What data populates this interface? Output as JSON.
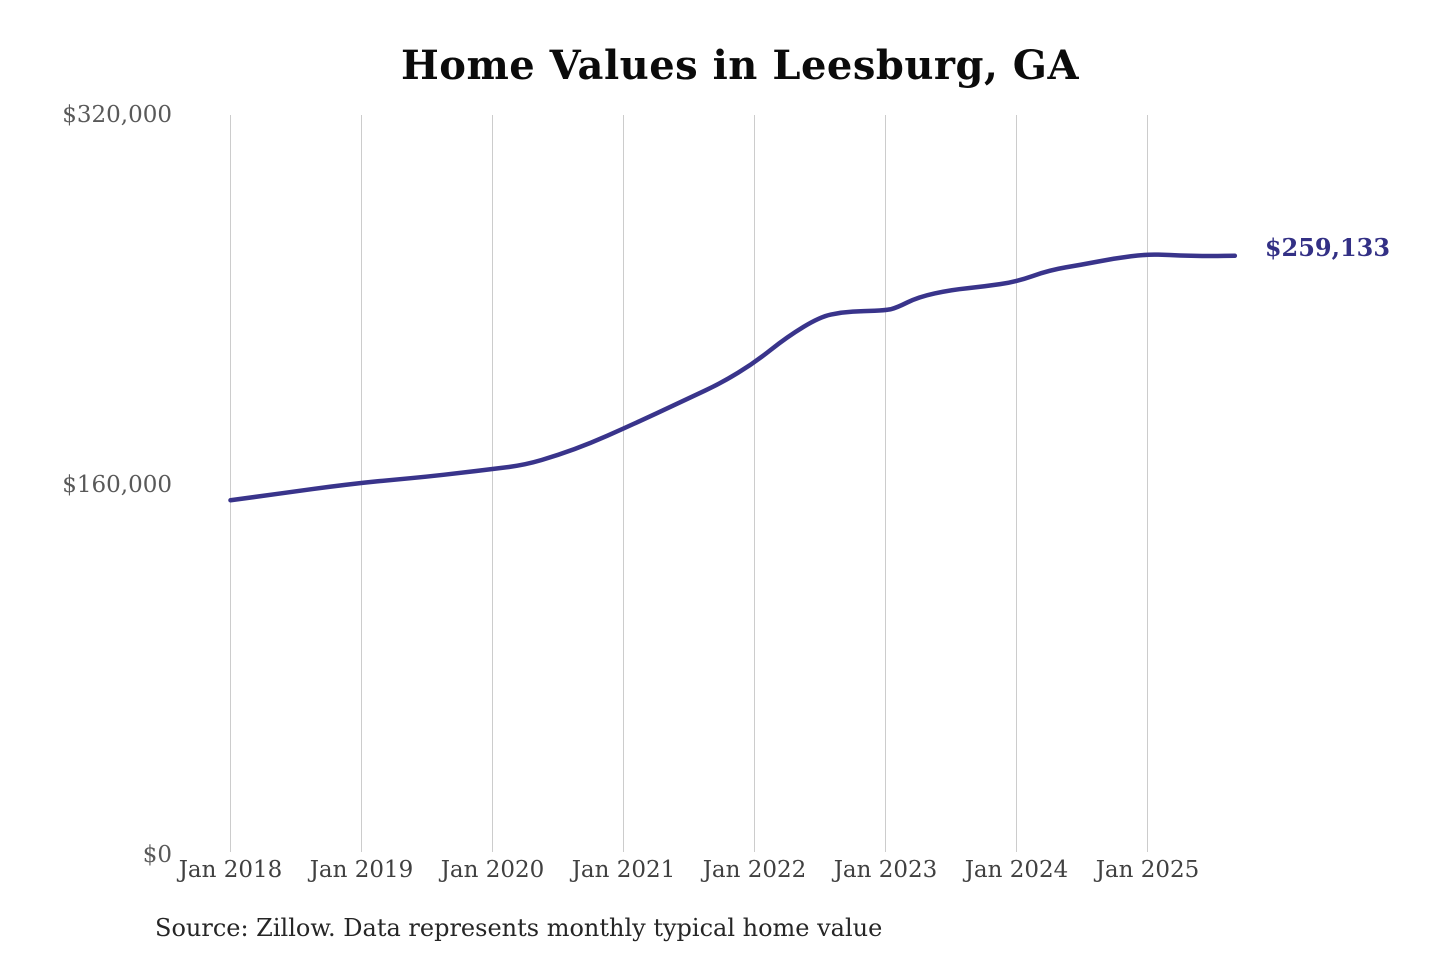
{
  "page": {
    "background": "#ffffff"
  },
  "chart": {
    "title": "Home Values in Leesburg, GA",
    "source": "Source: Zillow. Data represents monthly typical home value",
    "end_label": "$259,133",
    "line_color": "#39348b",
    "end_label_color": "#333085",
    "grid_color": "#cccccc"
  },
  "chart_data": {
    "type": "line",
    "title": "Home Values in Leesburg, GA",
    "xlabel": "",
    "ylabel": "",
    "ylim": [
      0,
      320000
    ],
    "grid": "vertical-only",
    "legend": "none",
    "y_ticks": [
      {
        "label": "$320,000",
        "value": 320000
      },
      {
        "label": "$160,000",
        "value": 160000
      },
      {
        "label": "$0",
        "value": 0
      }
    ],
    "x_ticks": [
      {
        "label": "Jan 2018",
        "m": 0
      },
      {
        "label": "Jan 2019",
        "m": 12
      },
      {
        "label": "Jan 2020",
        "m": 24
      },
      {
        "label": "Jan 2021",
        "m": 36
      },
      {
        "label": "Jan 2022",
        "m": 48
      },
      {
        "label": "Jan 2023",
        "m": 60
      },
      {
        "label": "Jan 2024",
        "m": 72
      },
      {
        "label": "Jan 2025",
        "m": 84
      }
    ],
    "series": [
      {
        "name": "Monthly typical home value",
        "points": [
          {
            "date": "Jan 2018",
            "m": 0,
            "value": 153400
          },
          {
            "date": "Apr 2018",
            "m": 3,
            "value": 155300
          },
          {
            "date": "Jul 2018",
            "m": 6,
            "value": 157300
          },
          {
            "date": "Oct 2018",
            "m": 9,
            "value": 159200
          },
          {
            "date": "Jan 2019",
            "m": 12,
            "value": 160900
          },
          {
            "date": "Apr 2019",
            "m": 15,
            "value": 162300
          },
          {
            "date": "Jul 2019",
            "m": 18,
            "value": 163600
          },
          {
            "date": "Oct 2019",
            "m": 21,
            "value": 165200
          },
          {
            "date": "Jan 2020",
            "m": 24,
            "value": 166900
          },
          {
            "date": "Apr 2020",
            "m": 27,
            "value": 168700
          },
          {
            "date": "Jul 2020",
            "m": 30,
            "value": 172900
          },
          {
            "date": "Oct 2020",
            "m": 33,
            "value": 178100
          },
          {
            "date": "Jan 2021",
            "m": 36,
            "value": 184400
          },
          {
            "date": "Apr 2021",
            "m": 39,
            "value": 190900
          },
          {
            "date": "Jul 2021",
            "m": 42,
            "value": 197600
          },
          {
            "date": "Oct 2021",
            "m": 45,
            "value": 204200
          },
          {
            "date": "Jan 2022",
            "m": 48,
            "value": 212900
          },
          {
            "date": "Apr 2022",
            "m": 51,
            "value": 224100
          },
          {
            "date": "Jul 2022",
            "m": 54,
            "value": 232700
          },
          {
            "date": "Sep 2022",
            "m": 56,
            "value": 234700
          },
          {
            "date": "Nov 2022",
            "m": 58,
            "value": 235200
          },
          {
            "date": "Jan 2023",
            "m": 60,
            "value": 235500
          },
          {
            "date": "Feb 2023",
            "m": 61,
            "value": 236600
          },
          {
            "date": "Apr 2023",
            "m": 63,
            "value": 241300
          },
          {
            "date": "Jul 2023",
            "m": 66,
            "value": 244400
          },
          {
            "date": "Oct 2023",
            "m": 69,
            "value": 245800
          },
          {
            "date": "Jan 2024",
            "m": 72,
            "value": 247900
          },
          {
            "date": "Apr 2024",
            "m": 75,
            "value": 252900
          },
          {
            "date": "Jul 2024",
            "m": 78,
            "value": 255300
          },
          {
            "date": "Oct 2024",
            "m": 81,
            "value": 258000
          },
          {
            "date": "Jan 2025",
            "m": 84,
            "value": 259800
          },
          {
            "date": "Mar 2025",
            "m": 86,
            "value": 259400
          },
          {
            "date": "May 2025",
            "m": 88,
            "value": 259100
          },
          {
            "date": "Jul 2025",
            "m": 90,
            "value": 259000
          },
          {
            "date": "Sep 2025",
            "m": 92,
            "value": 259133
          }
        ]
      }
    ],
    "latest": {
      "date": "Sep 2025",
      "value": 259133,
      "label": "$259,133"
    }
  }
}
